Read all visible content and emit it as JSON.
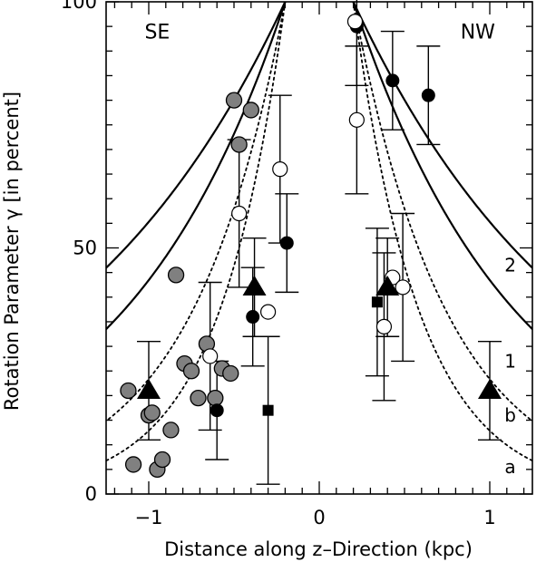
{
  "chart_data": {
    "type": "scatter",
    "xlabel": "Distance along z–Direction (kpc)",
    "ylabel": "Rotation Parameter γ [in percent]",
    "xlim": [
      -1.25,
      1.25
    ],
    "ylim": [
      0,
      100
    ],
    "xticks": [
      {
        "value": -1,
        "label": "−1"
      },
      {
        "value": 0,
        "label": "0"
      },
      {
        "value": 1,
        "label": "1"
      }
    ],
    "yticks": [
      {
        "value": 0,
        "label": "0"
      },
      {
        "value": 50,
        "label": "50"
      },
      {
        "value": 100,
        "label": "100"
      }
    ],
    "x_minor_step": 0.1,
    "y_minor_step": 5,
    "region_labels": [
      {
        "text": "SE",
        "x": -0.95,
        "y": 94
      },
      {
        "text": "NW",
        "x": 0.93,
        "y": 94
      }
    ],
    "curve_labels": [
      {
        "text": "2",
        "x": 1.12,
        "y": 46.5
      },
      {
        "text": "1",
        "x": 1.12,
        "y": 27
      },
      {
        "text": "b",
        "x": 1.12,
        "y": 16
      },
      {
        "text": "a",
        "x": 1.12,
        "y": 5.5
      }
    ],
    "model_curves": [
      {
        "label": "2",
        "style": "solid",
        "z0": 0.2,
        "scale": 1.35
      },
      {
        "label": "1",
        "style": "solid",
        "z0": 0.2,
        "scale": 0.96
      },
      {
        "label": "b",
        "style": "dotted",
        "z0": 0.2,
        "scale": 0.55
      },
      {
        "label": "a",
        "style": "dotted",
        "z0": 0.2,
        "scale": 0.39
      }
    ],
    "series": [
      {
        "marker": "circle-gray",
        "points": [
          {
            "x": -1.12,
            "y": 21
          },
          {
            "x": -1.0,
            "y": 16
          },
          {
            "x": -0.98,
            "y": 16.5
          },
          {
            "x": -0.87,
            "y": 13
          },
          {
            "x": -1.09,
            "y": 6
          },
          {
            "x": -0.95,
            "y": 5
          },
          {
            "x": -0.92,
            "y": 7
          },
          {
            "x": -0.79,
            "y": 26.5
          },
          {
            "x": -0.75,
            "y": 25
          },
          {
            "x": -0.71,
            "y": 19.5
          },
          {
            "x": -0.66,
            "y": 30.5
          },
          {
            "x": -0.61,
            "y": 19.5
          },
          {
            "x": -0.57,
            "y": 25.5
          },
          {
            "x": -0.52,
            "y": 24.5
          },
          {
            "x": -0.84,
            "y": 44.5
          },
          {
            "x": -0.47,
            "y": 71
          },
          {
            "x": -0.4,
            "y": 78
          },
          {
            "x": -0.5,
            "y": 80
          }
        ]
      },
      {
        "marker": "circle-filled",
        "points": [
          {
            "x": -0.6,
            "y": 17,
            "err": 10
          },
          {
            "x": -0.39,
            "y": 36,
            "err": 10
          },
          {
            "x": -0.19,
            "y": 51,
            "err": 10
          },
          {
            "x": 0.22,
            "y": 95,
            "err": 12
          },
          {
            "x": 0.43,
            "y": 84,
            "err": 10
          },
          {
            "x": 0.64,
            "y": 81,
            "err": 10
          }
        ]
      },
      {
        "marker": "circle-open",
        "points": [
          {
            "x": -0.64,
            "y": 28,
            "err": 15
          },
          {
            "x": -0.47,
            "y": 57,
            "err": 15
          },
          {
            "x": -0.3,
            "y": 37
          },
          {
            "x": -0.23,
            "y": 66,
            "err": 15
          },
          {
            "x": 0.21,
            "y": 96
          },
          {
            "x": 0.22,
            "y": 76,
            "err": 15
          },
          {
            "x": 0.38,
            "y": 34,
            "err": 15
          },
          {
            "x": 0.43,
            "y": 44
          },
          {
            "x": 0.49,
            "y": 42,
            "err": 15
          }
        ]
      },
      {
        "marker": "triangle",
        "points": [
          {
            "x": -1.0,
            "y": 21,
            "err": 10
          },
          {
            "x": -0.38,
            "y": 42,
            "err": 10
          },
          {
            "x": 0.4,
            "y": 42,
            "err": 10
          },
          {
            "x": 1.0,
            "y": 21,
            "err": 10
          }
        ]
      },
      {
        "marker": "square",
        "points": [
          {
            "x": -0.3,
            "y": 17,
            "err": 15
          },
          {
            "x": 0.34,
            "y": 39,
            "err": 15
          }
        ]
      }
    ]
  }
}
